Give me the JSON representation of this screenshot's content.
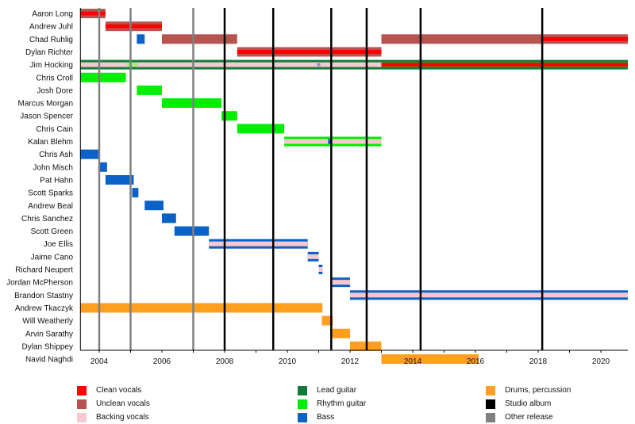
{
  "chart_data": {
    "type": "timeline",
    "title": "",
    "xlabel": "",
    "ylabel": "",
    "xlim": [
      2003.4,
      2020.86
    ],
    "x_ticks": [
      2004,
      2006,
      2008,
      2010,
      2012,
      2014,
      2016,
      2018,
      2020
    ],
    "x_tick_labels": [
      "2004",
      "2006",
      "2008",
      "2010",
      "2012",
      "2014",
      "2016",
      "2018",
      "2020"
    ],
    "grid": false,
    "roles": {
      "clean": {
        "label": "Clean vocals",
        "color": "#ff0000"
      },
      "unclean": {
        "label": "Unclean vocals",
        "color": "#b85450"
      },
      "backing": {
        "label": "Backing vocals",
        "color": "#f8c8d0"
      },
      "lead": {
        "label": "Lead guitar",
        "color": "#117a3a"
      },
      "rhythm": {
        "label": "Rhythm guitar",
        "color": "#00ee00"
      },
      "bass": {
        "label": "Bass",
        "color": "#0a62c8"
      },
      "drums": {
        "label": "Drums, percussion",
        "color": "#ff9e1f"
      },
      "studio": {
        "label": "Studio album",
        "color": "#000000"
      },
      "other": {
        "label": "Other release",
        "color": "#808080"
      }
    },
    "legend": {
      "placement": "bottom",
      "columns": [
        [
          "clean",
          "unclean",
          "backing"
        ],
        [
          "lead",
          "rhythm",
          "bass"
        ],
        [
          "drums",
          "studio",
          "other"
        ]
      ]
    },
    "releases": [
      {
        "year": 2004.0,
        "type": "other"
      },
      {
        "year": 2005.0,
        "type": "other"
      },
      {
        "year": 2007.0,
        "type": "other"
      },
      {
        "year": 2008.0,
        "type": "studio"
      },
      {
        "year": 2009.55,
        "type": "studio"
      },
      {
        "year": 2011.4,
        "type": "studio"
      },
      {
        "year": 2012.53,
        "type": "studio"
      },
      {
        "year": 2014.25,
        "type": "studio"
      },
      {
        "year": 2018.13,
        "type": "studio"
      }
    ],
    "members": [
      {
        "name": "Aaron Long",
        "spans": [
          {
            "start": 2003.4,
            "end": 2004.2,
            "role": "unclean",
            "inner": "clean"
          }
        ]
      },
      {
        "name": "Andrew Juhl",
        "spans": [
          {
            "start": 2004.2,
            "end": 2006.0,
            "role": "unclean",
            "inner": "clean"
          }
        ]
      },
      {
        "name": "Chad Ruhlig",
        "spans": [
          {
            "start": 2005.2,
            "end": 2005.45,
            "role": "bass"
          },
          {
            "start": 2006.0,
            "end": 2008.4,
            "role": "unclean"
          },
          {
            "start": 2013.0,
            "end": 2018.13,
            "role": "unclean"
          },
          {
            "start": 2018.13,
            "end": 2020.86,
            "role": "unclean",
            "inner": "clean"
          }
        ]
      },
      {
        "name": "Dylan Richter",
        "spans": [
          {
            "start": 2008.4,
            "end": 2013.0,
            "role": "unclean",
            "inner": "clean"
          }
        ]
      },
      {
        "name": "Jim Hocking",
        "spans": [
          {
            "start": 2003.4,
            "end": 2004.9,
            "role": "lead",
            "stripe": "backing"
          },
          {
            "start": 2004.9,
            "end": 2005.2,
            "role": "lead",
            "stripe": "rhythm-light"
          },
          {
            "start": 2005.2,
            "end": 2013.0,
            "role": "lead",
            "stripe": "backing"
          },
          {
            "start": 2013.0,
            "end": 2020.86,
            "role": "lead",
            "stripe": "rhythm",
            "inner": "clean"
          }
        ]
      },
      {
        "name": "Chris Croll",
        "spans": [
          {
            "start": 2003.4,
            "end": 2004.85,
            "role": "rhythm"
          }
        ]
      },
      {
        "name": "Josh Dore",
        "spans": [
          {
            "start": 2005.2,
            "end": 2006.0,
            "role": "rhythm"
          }
        ]
      },
      {
        "name": "Marcus Morgan",
        "spans": [
          {
            "start": 2006.0,
            "end": 2007.9,
            "role": "rhythm"
          }
        ]
      },
      {
        "name": "Jason Spencer",
        "spans": [
          {
            "start": 2007.9,
            "end": 2008.4,
            "role": "rhythm"
          }
        ]
      },
      {
        "name": "Chris Cain",
        "spans": [
          {
            "start": 2008.4,
            "end": 2009.9,
            "role": "rhythm"
          }
        ]
      },
      {
        "name": "Kalan Blehm",
        "spans": [
          {
            "start": 2009.9,
            "end": 2013.0,
            "role": "rhythm",
            "stripe": "backing"
          }
        ]
      },
      {
        "name": "Chris Ash",
        "spans": [
          {
            "start": 2003.4,
            "end": 2004.0,
            "role": "bass"
          }
        ]
      },
      {
        "name": "John Misch",
        "spans": [
          {
            "start": 2004.0,
            "end": 2004.25,
            "role": "bass"
          }
        ]
      },
      {
        "name": "Pat Hahn",
        "spans": [
          {
            "start": 2004.2,
            "end": 2005.1,
            "role": "bass"
          }
        ]
      },
      {
        "name": "Scott Sparks",
        "spans": [
          {
            "start": 2005.05,
            "end": 2005.25,
            "role": "bass"
          }
        ]
      },
      {
        "name": "Andrew Beal",
        "spans": [
          {
            "start": 2005.45,
            "end": 2006.05,
            "role": "bass"
          }
        ]
      },
      {
        "name": "Chris Sanchez",
        "spans": [
          {
            "start": 2006.0,
            "end": 2006.45,
            "role": "bass"
          }
        ]
      },
      {
        "name": "Scott Green",
        "spans": [
          {
            "start": 2006.4,
            "end": 2007.5,
            "role": "bass"
          }
        ]
      },
      {
        "name": "Joe Ellis",
        "spans": [
          {
            "start": 2007.5,
            "end": 2010.65,
            "role": "bass",
            "stripe": "backing"
          }
        ]
      },
      {
        "name": "Jaime Cano",
        "spans": [
          {
            "start": 2010.65,
            "end": 2011.0,
            "role": "bass",
            "stripe": "backing"
          }
        ]
      },
      {
        "name": "Richard Neupert",
        "spans": [
          {
            "start": 2011.0,
            "end": 2011.12,
            "role": "bass",
            "stripe": "backing"
          }
        ]
      },
      {
        "name": "Jordan McPherson",
        "spans": [
          {
            "start": 2011.4,
            "end": 2012.0,
            "role": "bass",
            "stripe": "backing"
          }
        ]
      },
      {
        "name": "Brandon Stastny",
        "spans": [
          {
            "start": 2012.0,
            "end": 2020.86,
            "role": "bass",
            "stripe": "backing"
          }
        ]
      },
      {
        "name": "Andrew Tkaczyk",
        "spans": [
          {
            "start": 2003.4,
            "end": 2011.12,
            "role": "drums"
          }
        ]
      },
      {
        "name": "Will Weatherly",
        "spans": [
          {
            "start": 2011.1,
            "end": 2011.45,
            "role": "drums"
          }
        ]
      },
      {
        "name": "Arvin Sarathy",
        "spans": [
          {
            "start": 2011.4,
            "end": 2012.0,
            "role": "drums"
          }
        ]
      },
      {
        "name": "Dylan Shippey",
        "spans": [
          {
            "start": 2012.0,
            "end": 2013.0,
            "role": "drums"
          }
        ]
      },
      {
        "name": "Navid Naghdi",
        "spans": [
          {
            "start": 2013.0,
            "end": 2016.1,
            "role": "drums"
          }
        ]
      }
    ]
  }
}
